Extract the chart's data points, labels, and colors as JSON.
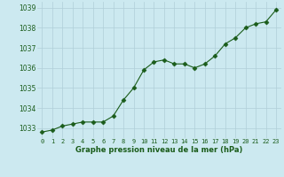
{
  "x": [
    0,
    1,
    2,
    3,
    4,
    5,
    6,
    7,
    8,
    9,
    10,
    11,
    12,
    13,
    14,
    15,
    16,
    17,
    18,
    19,
    20,
    21,
    22,
    23
  ],
  "y": [
    1032.8,
    1032.9,
    1033.1,
    1033.2,
    1033.3,
    1033.3,
    1033.3,
    1033.6,
    1034.4,
    1035.0,
    1035.9,
    1036.3,
    1036.4,
    1036.2,
    1036.2,
    1036.0,
    1036.2,
    1036.6,
    1037.2,
    1037.5,
    1038.0,
    1038.2,
    1038.3,
    1038.9
  ],
  "line_color": "#1a5c1a",
  "marker": "D",
  "marker_size": 2.5,
  "bg_color": "#cce9f0",
  "grid_color": "#b0cfd8",
  "xlabel": "Graphe pression niveau de la mer (hPa)",
  "xlabel_color": "#1a5c1a",
  "tick_color": "#1a5c1a",
  "ylim": [
    1032.5,
    1039.3
  ],
  "xlim": [
    -0.5,
    23.5
  ],
  "yticks": [
    1033,
    1034,
    1035,
    1036,
    1037,
    1038,
    1039
  ],
  "xticks": [
    0,
    1,
    2,
    3,
    4,
    5,
    6,
    7,
    8,
    9,
    10,
    11,
    12,
    13,
    14,
    15,
    16,
    17,
    18,
    19,
    20,
    21,
    22,
    23
  ]
}
